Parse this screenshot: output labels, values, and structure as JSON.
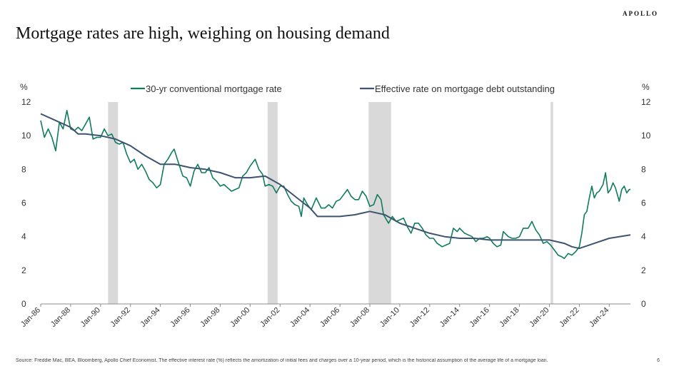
{
  "header": {
    "brand": "APOLLO",
    "title": "Mortgage rates are high, weighing on housing demand"
  },
  "footer": {
    "source": "Source: Freddie Mac, BEA, Bloomberg, Apollo Chief Economist. The effective interest rate (%) reflects the amortization of initial fees and charges over a 10-year period, which is the historical assumption of the average life of a mortgage loan.",
    "page_number": "6"
  },
  "chart_data": {
    "type": "line",
    "title": "",
    "ylabel_left": "%",
    "ylabel_right": "%",
    "ylim": [
      0,
      12
    ],
    "yticks": [
      "0",
      "2",
      "4",
      "6",
      "8",
      "10",
      "12"
    ],
    "xlim": [
      "1986-01",
      "2025-06"
    ],
    "xticks": [
      "Jan-86",
      "Jan-88",
      "Jan-90",
      "Jan-92",
      "Jan-94",
      "Jan-96",
      "Jan-98",
      "Jan-00",
      "Jan-02",
      "Jan-04",
      "Jan-06",
      "Jan-08",
      "Jan-10",
      "Jan-12",
      "Jan-14",
      "Jan-16",
      "Jan-18",
      "Jan-20",
      "Jan-22",
      "Jan-24"
    ],
    "legend_position": "top",
    "grid": false,
    "recessions": [
      {
        "start": "1990-07",
        "end": "1991-03"
      },
      {
        "start": "2001-03",
        "end": "2001-11"
      },
      {
        "start": "2007-12",
        "end": "2009-06"
      },
      {
        "start": "2020-02",
        "end": "2020-04"
      }
    ],
    "recession_color": "#d9d9d9",
    "series": [
      {
        "name": "30-yr conventional mortgage rate",
        "color": "#0f7c5d",
        "points": [
          [
            "1986-01",
            10.9
          ],
          [
            "1986-04",
            9.9
          ],
          [
            "1986-07",
            10.4
          ],
          [
            "1986-10",
            9.9
          ],
          [
            "1987-01",
            9.1
          ],
          [
            "1987-04",
            10.8
          ],
          [
            "1987-07",
            10.4
          ],
          [
            "1987-10",
            11.5
          ],
          [
            "1988-01",
            10.4
          ],
          [
            "1988-04",
            10.3
          ],
          [
            "1988-07",
            10.5
          ],
          [
            "1988-10",
            10.3
          ],
          [
            "1989-01",
            10.7
          ],
          [
            "1989-04",
            11.1
          ],
          [
            "1989-07",
            9.8
          ],
          [
            "1989-10",
            9.9
          ],
          [
            "1990-01",
            9.9
          ],
          [
            "1990-04",
            10.4
          ],
          [
            "1990-07",
            10.0
          ],
          [
            "1990-10",
            10.1
          ],
          [
            "1991-01",
            9.6
          ],
          [
            "1991-04",
            9.5
          ],
          [
            "1991-07",
            9.6
          ],
          [
            "1991-10",
            8.9
          ],
          [
            "1992-01",
            8.4
          ],
          [
            "1992-04",
            8.6
          ],
          [
            "1992-07",
            8.0
          ],
          [
            "1992-10",
            8.3
          ],
          [
            "1993-01",
            7.9
          ],
          [
            "1993-04",
            7.4
          ],
          [
            "1993-07",
            7.2
          ],
          [
            "1993-10",
            6.9
          ],
          [
            "1994-01",
            7.1
          ],
          [
            "1994-04",
            8.3
          ],
          [
            "1994-07",
            8.6
          ],
          [
            "1994-10",
            9.0
          ],
          [
            "1994-12",
            9.2
          ],
          [
            "1995-03",
            8.5
          ],
          [
            "1995-07",
            7.6
          ],
          [
            "1995-10",
            7.5
          ],
          [
            "1996-01",
            7.0
          ],
          [
            "1996-04",
            7.9
          ],
          [
            "1996-07",
            8.3
          ],
          [
            "1996-10",
            7.8
          ],
          [
            "1997-01",
            7.8
          ],
          [
            "1997-04",
            8.1
          ],
          [
            "1997-07",
            7.5
          ],
          [
            "1997-10",
            7.3
          ],
          [
            "1998-01",
            7.0
          ],
          [
            "1998-04",
            7.1
          ],
          [
            "1998-07",
            6.9
          ],
          [
            "1998-10",
            6.7
          ],
          [
            "1999-01",
            6.8
          ],
          [
            "1999-04",
            6.9
          ],
          [
            "1999-07",
            7.6
          ],
          [
            "1999-10",
            7.8
          ],
          [
            "2000-01",
            8.2
          ],
          [
            "2000-05",
            8.6
          ],
          [
            "2000-08",
            8.0
          ],
          [
            "2000-11",
            7.7
          ],
          [
            "2001-01",
            7.0
          ],
          [
            "2001-04",
            7.1
          ],
          [
            "2001-07",
            7.0
          ],
          [
            "2001-10",
            6.6
          ],
          [
            "2002-01",
            7.0
          ],
          [
            "2002-04",
            7.0
          ],
          [
            "2002-07",
            6.5
          ],
          [
            "2002-10",
            6.1
          ],
          [
            "2003-01",
            5.9
          ],
          [
            "2003-04",
            5.8
          ],
          [
            "2003-06",
            5.2
          ],
          [
            "2003-08",
            6.3
          ],
          [
            "2003-11",
            5.9
          ],
          [
            "2004-02",
            5.6
          ],
          [
            "2004-06",
            6.3
          ],
          [
            "2004-10",
            5.7
          ],
          [
            "2005-01",
            5.7
          ],
          [
            "2005-04",
            5.9
          ],
          [
            "2005-07",
            5.7
          ],
          [
            "2005-10",
            6.1
          ],
          [
            "2006-01",
            6.2
          ],
          [
            "2006-04",
            6.5
          ],
          [
            "2006-07",
            6.8
          ],
          [
            "2006-10",
            6.4
          ],
          [
            "2007-01",
            6.2
          ],
          [
            "2007-04",
            6.2
          ],
          [
            "2007-07",
            6.7
          ],
          [
            "2007-10",
            6.4
          ],
          [
            "2008-01",
            5.8
          ],
          [
            "2008-04",
            5.9
          ],
          [
            "2008-07",
            6.5
          ],
          [
            "2008-10",
            6.2
          ],
          [
            "2008-12",
            5.3
          ],
          [
            "2009-04",
            4.8
          ],
          [
            "2009-07",
            5.2
          ],
          [
            "2009-10",
            4.9
          ],
          [
            "2010-01",
            5.0
          ],
          [
            "2010-04",
            5.1
          ],
          [
            "2010-07",
            4.6
          ],
          [
            "2010-10",
            4.2
          ],
          [
            "2011-01",
            4.8
          ],
          [
            "2011-04",
            4.8
          ],
          [
            "2011-07",
            4.5
          ],
          [
            "2011-10",
            4.1
          ],
          [
            "2012-01",
            3.9
          ],
          [
            "2012-04",
            3.9
          ],
          [
            "2012-07",
            3.6
          ],
          [
            "2012-11",
            3.4
          ],
          [
            "2013-02",
            3.5
          ],
          [
            "2013-05",
            3.6
          ],
          [
            "2013-08",
            4.5
          ],
          [
            "2013-11",
            4.3
          ],
          [
            "2014-01",
            4.5
          ],
          [
            "2014-05",
            4.2
          ],
          [
            "2014-08",
            4.1
          ],
          [
            "2014-11",
            4.0
          ],
          [
            "2015-02",
            3.7
          ],
          [
            "2015-05",
            3.9
          ],
          [
            "2015-08",
            3.9
          ],
          [
            "2015-11",
            4.0
          ],
          [
            "2016-01",
            3.9
          ],
          [
            "2016-04",
            3.6
          ],
          [
            "2016-07",
            3.4
          ],
          [
            "2016-10",
            3.5
          ],
          [
            "2016-12",
            4.3
          ],
          [
            "2017-04",
            4.0
          ],
          [
            "2017-07",
            3.9
          ],
          [
            "2017-10",
            3.9
          ],
          [
            "2018-01",
            4.0
          ],
          [
            "2018-04",
            4.5
          ],
          [
            "2018-08",
            4.5
          ],
          [
            "2018-11",
            4.9
          ],
          [
            "2019-02",
            4.4
          ],
          [
            "2019-05",
            4.1
          ],
          [
            "2019-08",
            3.6
          ],
          [
            "2019-11",
            3.7
          ],
          [
            "2020-02",
            3.5
          ],
          [
            "2020-05",
            3.2
          ],
          [
            "2020-08",
            2.9
          ],
          [
            "2020-11",
            2.8
          ],
          [
            "2021-01",
            2.7
          ],
          [
            "2021-04",
            3.0
          ],
          [
            "2021-07",
            2.9
          ],
          [
            "2021-10",
            3.1
          ],
          [
            "2022-01",
            3.4
          ],
          [
            "2022-03",
            4.2
          ],
          [
            "2022-05",
            5.3
          ],
          [
            "2022-07",
            5.5
          ],
          [
            "2022-09",
            6.3
          ],
          [
            "2022-11",
            7.0
          ],
          [
            "2023-01",
            6.3
          ],
          [
            "2023-03",
            6.6
          ],
          [
            "2023-05",
            6.7
          ],
          [
            "2023-08",
            7.1
          ],
          [
            "2023-10",
            7.8
          ],
          [
            "2023-12",
            6.6
          ],
          [
            "2024-02",
            6.8
          ],
          [
            "2024-04",
            7.2
          ],
          [
            "2024-06",
            6.9
          ],
          [
            "2024-09",
            6.1
          ],
          [
            "2024-11",
            6.8
          ],
          [
            "2025-01",
            7.0
          ],
          [
            "2025-03",
            6.6
          ],
          [
            "2025-05",
            6.8
          ],
          [
            "2025-06",
            6.8
          ]
        ]
      },
      {
        "name": "Effective rate on mortgage debt outstanding",
        "color": "#3c5472",
        "points": [
          [
            "1986-01",
            11.3
          ],
          [
            "1987-01",
            10.9
          ],
          [
            "1988-01",
            10.5
          ],
          [
            "1988-07",
            10.1
          ],
          [
            "1989-01",
            10.1
          ],
          [
            "1990-01",
            10.0
          ],
          [
            "1991-01",
            9.8
          ],
          [
            "1992-01",
            9.4
          ],
          [
            "1993-01",
            8.8
          ],
          [
            "1994-01",
            8.3
          ],
          [
            "1995-01",
            8.3
          ],
          [
            "1996-01",
            8.1
          ],
          [
            "1997-01",
            8.0
          ],
          [
            "1998-01",
            7.8
          ],
          [
            "1999-01",
            7.5
          ],
          [
            "2000-01",
            7.5
          ],
          [
            "2001-01",
            7.6
          ],
          [
            "2002-01",
            7.1
          ],
          [
            "2003-01",
            6.4
          ],
          [
            "2004-01",
            5.7
          ],
          [
            "2004-07",
            5.2
          ],
          [
            "2005-01",
            5.2
          ],
          [
            "2006-01",
            5.2
          ],
          [
            "2007-01",
            5.3
          ],
          [
            "2008-01",
            5.5
          ],
          [
            "2009-01",
            5.3
          ],
          [
            "2010-01",
            4.8
          ],
          [
            "2011-01",
            4.5
          ],
          [
            "2012-01",
            4.2
          ],
          [
            "2013-01",
            4.0
          ],
          [
            "2014-01",
            3.9
          ],
          [
            "2015-01",
            3.9
          ],
          [
            "2016-01",
            3.8
          ],
          [
            "2017-01",
            3.8
          ],
          [
            "2018-01",
            3.8
          ],
          [
            "2019-01",
            3.8
          ],
          [
            "2020-01",
            3.8
          ],
          [
            "2021-01",
            3.6
          ],
          [
            "2021-07",
            3.4
          ],
          [
            "2022-01",
            3.3
          ],
          [
            "2023-01",
            3.6
          ],
          [
            "2024-01",
            3.9
          ],
          [
            "2025-06",
            4.1
          ]
        ]
      }
    ]
  }
}
